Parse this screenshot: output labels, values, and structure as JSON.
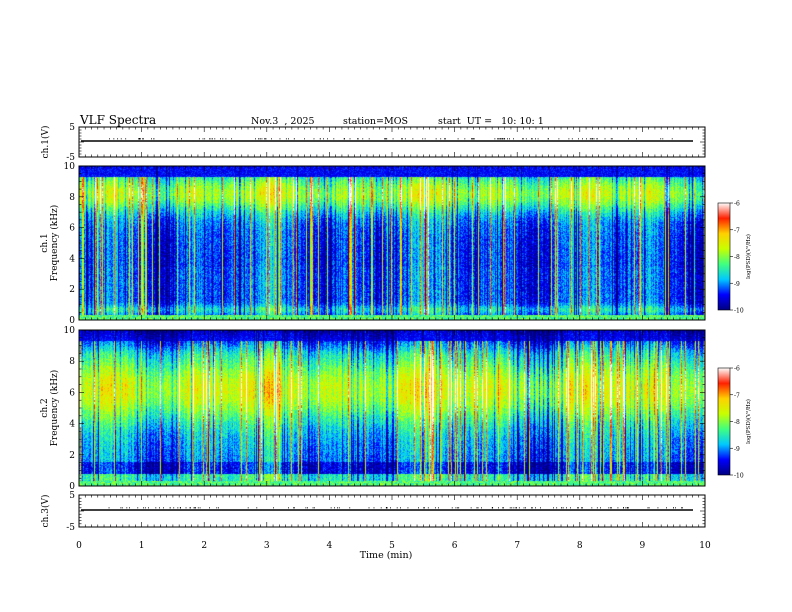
{
  "header": {
    "title": "VLF Spectra",
    "date": "Nov.3  , 2025",
    "station": "station=MOS",
    "start_ut": "start  UT =   10: 10: 1"
  },
  "colors": {
    "colormap": [
      "#00007f",
      "#0000ff",
      "#00c8ff",
      "#40ff80",
      "#c8ff00",
      "#ffd000",
      "#ff2000",
      "#ffffff"
    ],
    "axis": "#000000"
  },
  "chart_data": [
    {
      "type": "line",
      "panel": "ch1-waveform",
      "ylabel": "ch.1(V)",
      "ylim": [
        -5,
        5
      ],
      "yticks": [
        5,
        -5
      ],
      "y_level": 0,
      "xlim": [
        0,
        10
      ]
    },
    {
      "type": "heatmap",
      "panel": "ch1-spectrogram",
      "ylabel": "ch.1\nFrequency (kHz)",
      "ylim": [
        0,
        10
      ],
      "yticks": [
        0,
        2,
        4,
        6,
        8,
        10
      ],
      "xlim": [
        0,
        10
      ],
      "colorbar": {
        "label": "log(PSD)(V²/Hz)",
        "range": [
          -10,
          -6
        ],
        "ticks": [
          -6,
          -7,
          -8,
          -9,
          -10
        ]
      }
    },
    {
      "type": "heatmap",
      "panel": "ch2-spectrogram",
      "ylabel": "ch.2\nFrequency (kHz)",
      "ylim": [
        0,
        10
      ],
      "yticks": [
        0,
        2,
        4,
        6,
        8,
        10
      ],
      "xlim": [
        0,
        10
      ],
      "colorbar": {
        "label": "log(PSD)(V²/Hz)",
        "range": [
          -10,
          -6
        ],
        "ticks": [
          -6,
          -7,
          -8,
          -9,
          -10
        ]
      }
    },
    {
      "type": "line",
      "panel": "ch3-waveform",
      "ylabel": "ch.3(V)",
      "ylim": [
        -5,
        5
      ],
      "yticks": [
        5,
        -5
      ],
      "y_level": 0,
      "xlim": [
        0,
        10
      ],
      "xlabel": "Time (min)",
      "xticks": [
        0,
        1,
        2,
        3,
        4,
        5,
        6,
        7,
        8,
        9,
        10
      ]
    }
  ]
}
